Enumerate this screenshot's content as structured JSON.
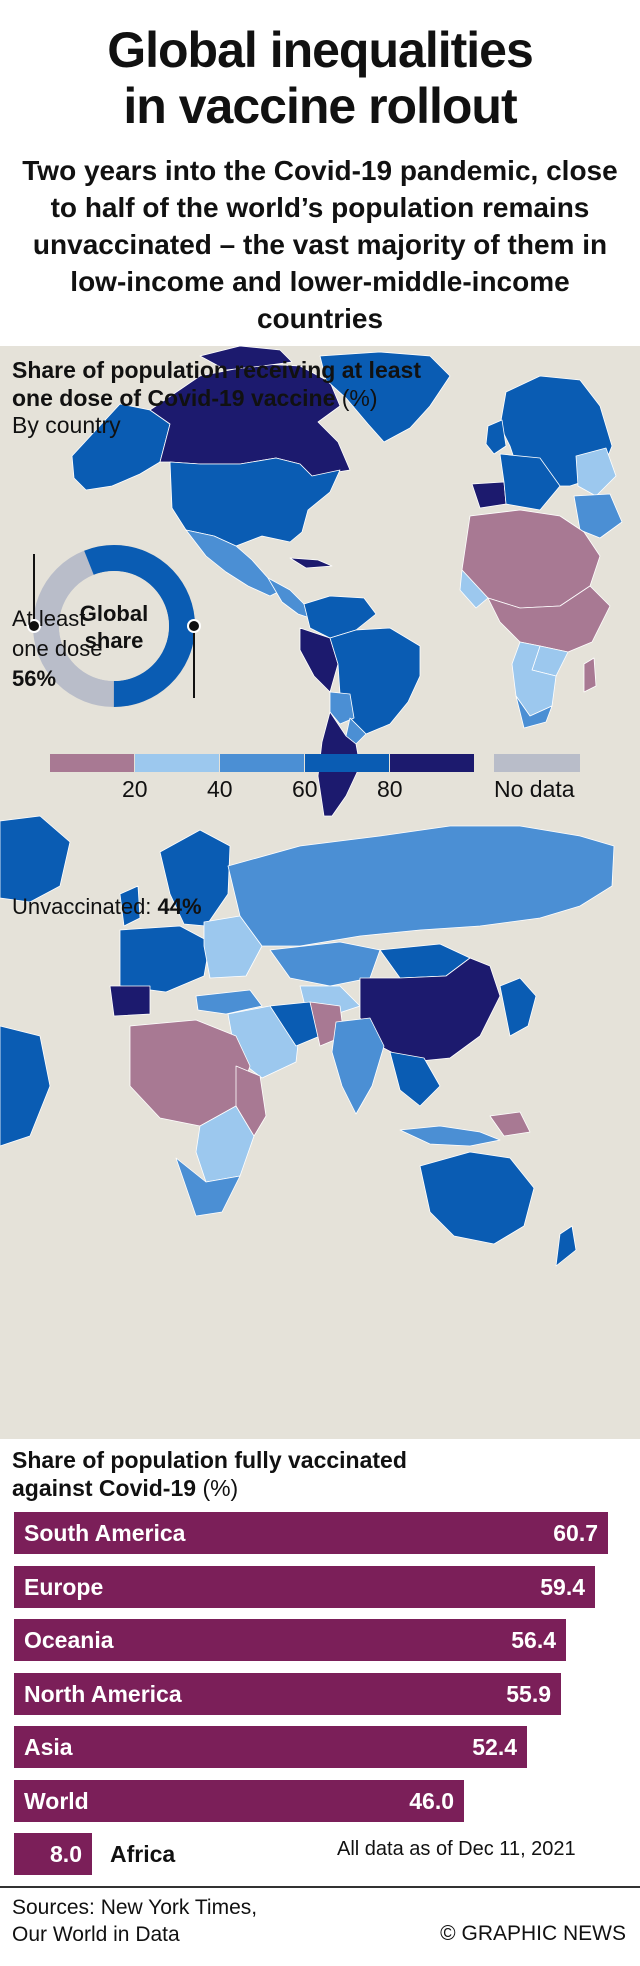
{
  "header": {
    "title_line1": "Global inequalities",
    "title_line2": "in vaccine rollout",
    "subtitle": "Two years into the Covid-19 pandemic, close to half of the world’s population remains unvaccinated – the vast majority of them in low-income and lower-middle-income countries"
  },
  "map": {
    "title_line1": "Share of population receiving at least",
    "title_line2": "one dose of Covid-19 vaccine",
    "unit": "(%)",
    "subtitle": "By country",
    "legend": {
      "colors": [
        "#a87993",
        "#9cc8ee",
        "#4b8fd4",
        "#0a5cb3",
        "#1c1a6e"
      ],
      "ticks": [
        "20",
        "40",
        "60",
        "80"
      ],
      "nodata_color": "#b9bdc9",
      "nodata_label": "No data"
    }
  },
  "donut": {
    "center_line1": "Global",
    "center_line2": "share",
    "dose_label_line1": "At least",
    "dose_label_line2": "one dose",
    "dose_value": "56%",
    "unvacc_label": "Unvaccinated:",
    "unvacc_value": "44%",
    "fraction_vaccinated": 0.56,
    "vacc_color": "#0a5cb3",
    "unvacc_color": "#b9bdc9"
  },
  "chart_data": {
    "type": "bar",
    "title": "Share of population fully vaccinated against Covid-19",
    "title_line1": "Share of population fully vaccinated",
    "title_line2": "against Covid-19",
    "unit": "(%)",
    "categories": [
      "South America",
      "Europe",
      "Oceania",
      "North America",
      "Asia",
      "World",
      "Africa"
    ],
    "values": [
      60.7,
      59.4,
      56.4,
      55.9,
      52.4,
      46.0,
      8.0
    ],
    "value_labels": [
      "60.7",
      "59.4",
      "56.4",
      "55.9",
      "52.4",
      "46.0",
      "8.0"
    ],
    "bar_color": "#7b1f59",
    "xlim": [
      0,
      60.7
    ]
  },
  "footer": {
    "as_of": "All data as of Dec 11, 2021",
    "sources_line1": "Sources: New York Times,",
    "sources_line2": "Our World in Data",
    "credit": "© GRAPHIC NEWS"
  }
}
